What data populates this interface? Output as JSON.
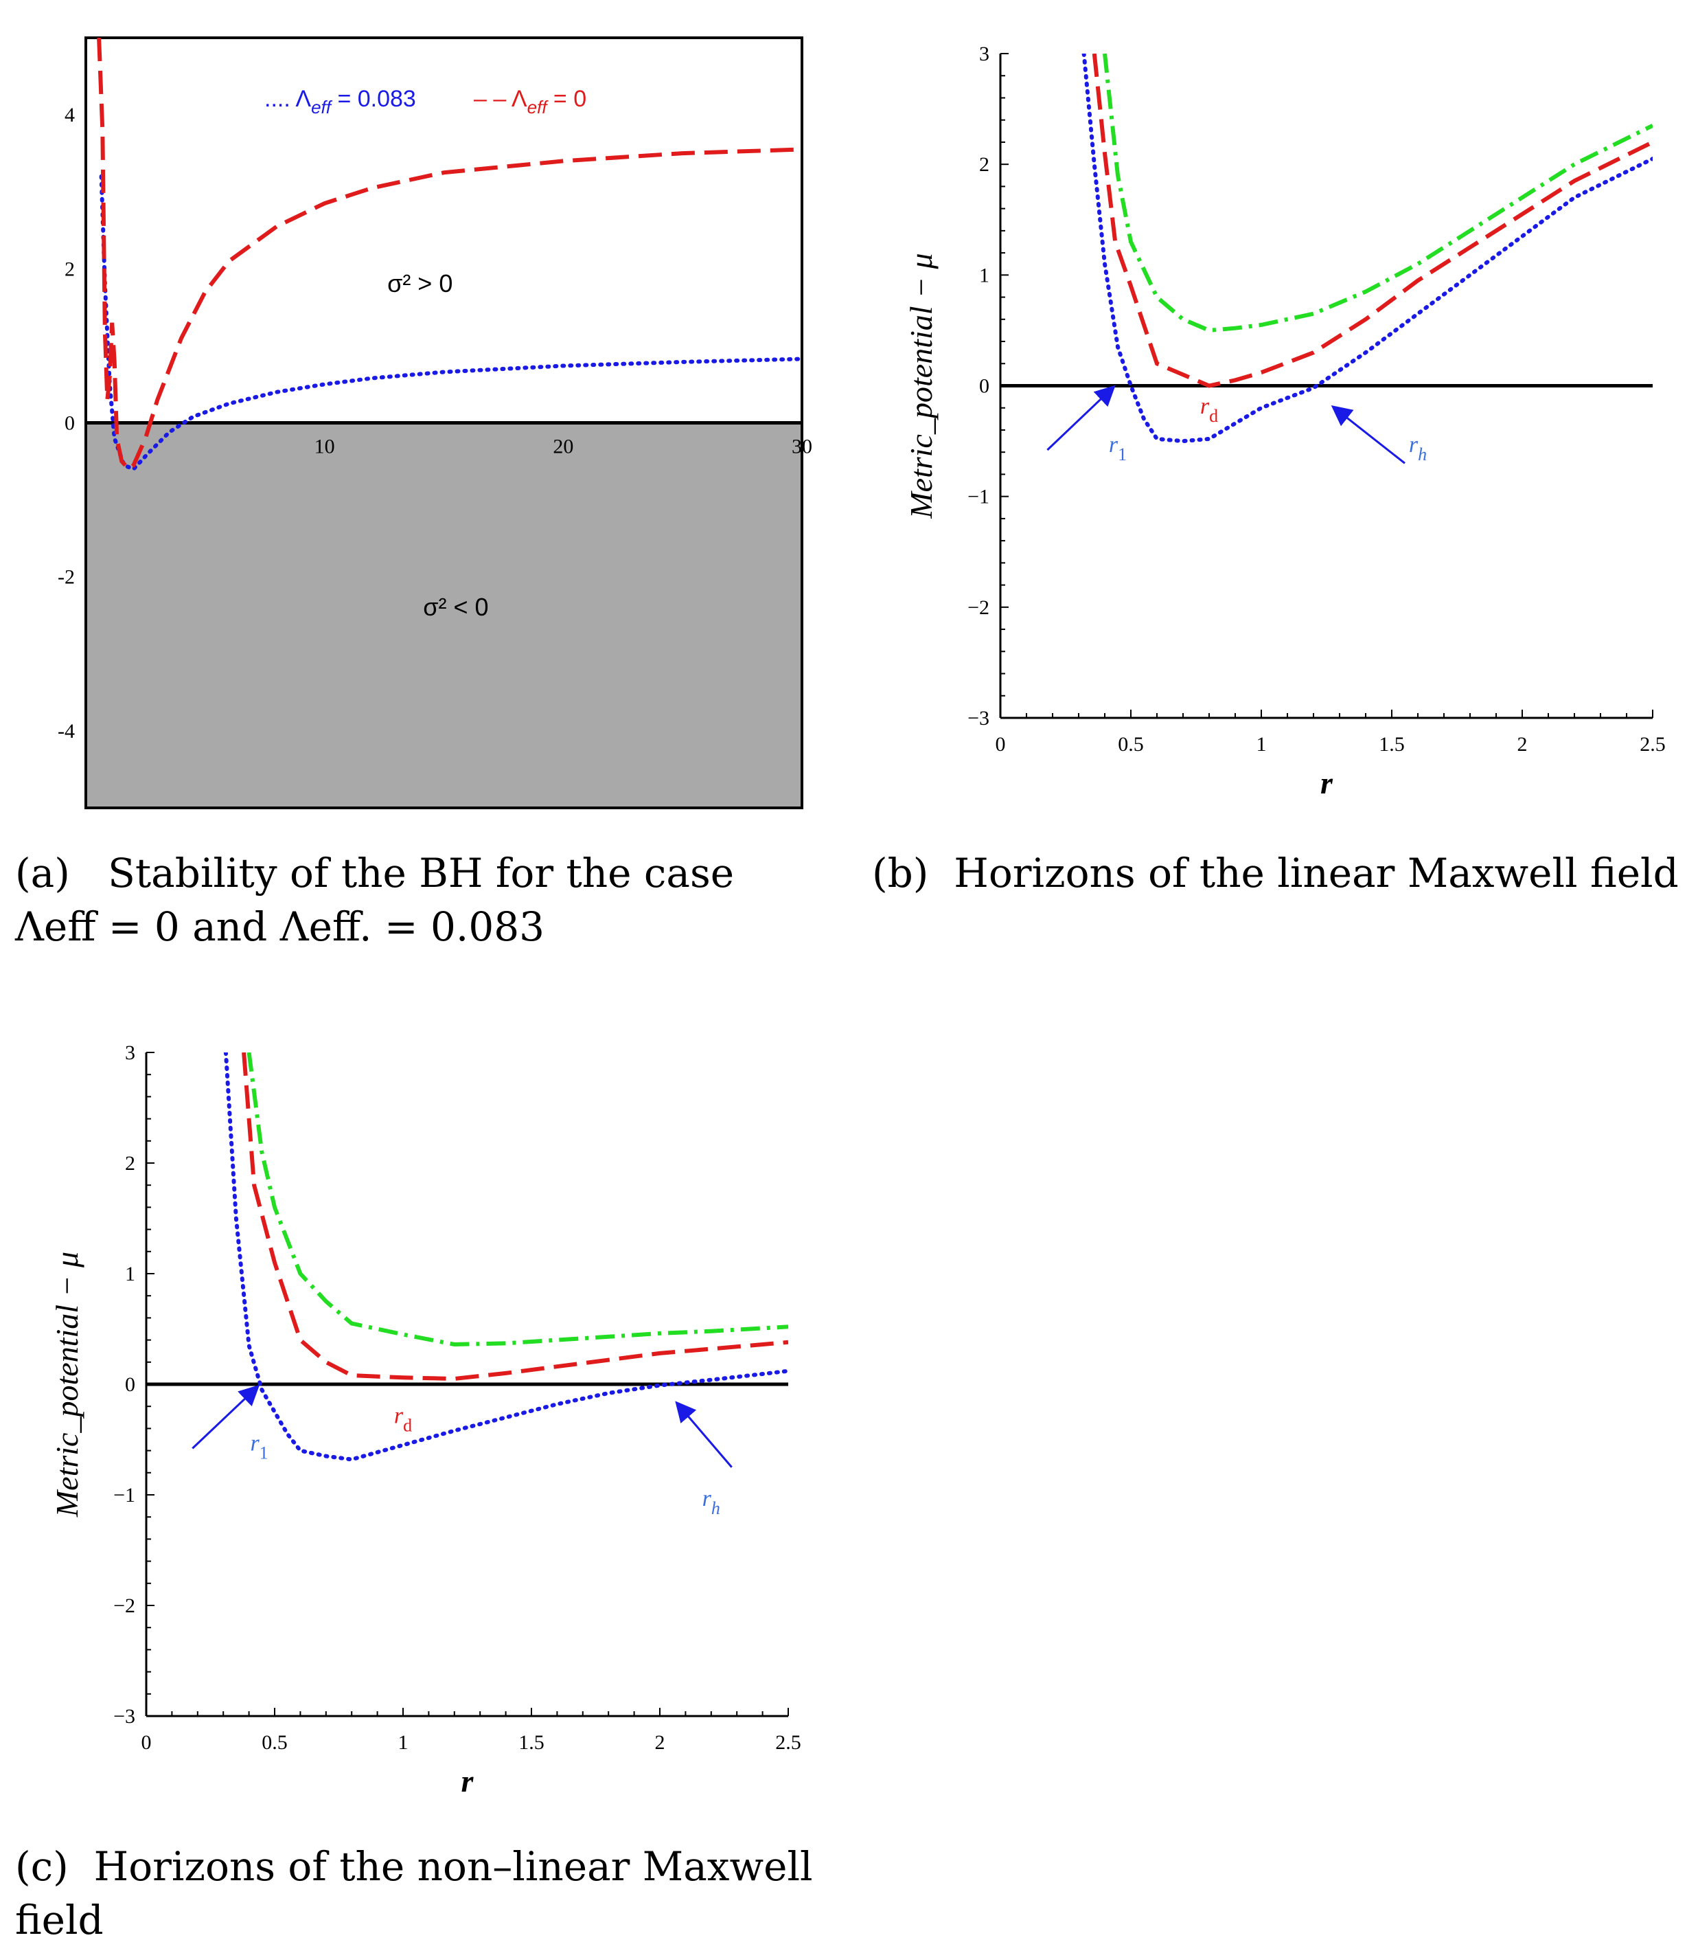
{
  "colors": {
    "blue": "#1a1ae6",
    "red": "#e01b1b",
    "green": "#22dd22",
    "label_blue": "#3b6fe0",
    "shade": "#a9a9a9"
  },
  "chart_data": [
    {
      "id": "a",
      "type": "line",
      "xlim": [
        0,
        30
      ],
      "ylim": [
        -5,
        5
      ],
      "x_ticks": [
        10,
        20,
        30
      ],
      "y_ticks": [
        -4,
        -2,
        0,
        2,
        4
      ],
      "x_tick_labels": [
        "10",
        "20",
        "30"
      ],
      "y_tick_labels": [
        "-4",
        "-2",
        "0",
        "2",
        "4"
      ],
      "shaded_region": "y < 0",
      "region_labels": {
        "upper": "σ² > 0",
        "lower": "σ² < 0"
      },
      "legend": {
        "position": "top-right",
        "entries": [
          {
            "symbol": "....",
            "label": "Λeff = 0.083",
            "color": "#1a1ae6"
          },
          {
            "symbol": "– –",
            "label": "Λeff = 0",
            "color": "#e01b1b"
          }
        ]
      },
      "series": [
        {
          "name": "Λeff = 0.083",
          "color": "#1a1ae6",
          "dash": "dot",
          "x": [
            0.65,
            0.8,
            1,
            1.2,
            1.6,
            2,
            2.6,
            3.5,
            4.5,
            6,
            8,
            10,
            12,
            15,
            20,
            25,
            30
          ],
          "y": [
            3.2,
            1.8,
            0.5,
            -0.2,
            -0.55,
            -0.6,
            -0.4,
            -0.12,
            0.08,
            0.25,
            0.4,
            0.5,
            0.58,
            0.66,
            0.74,
            0.79,
            0.83
          ]
        },
        {
          "name": "Λeff = 0",
          "color": "#e01b1b",
          "dash": "long-dash",
          "x": [
            0.55,
            0.7,
            0.8,
            0.9,
            1.0,
            1.1,
            1.2,
            1.3,
            1.5,
            1.8,
            2.0,
            2.5,
            3,
            4,
            5,
            6,
            8,
            10,
            12,
            15,
            20,
            25,
            30
          ],
          "y": [
            5,
            3.8,
            1.2,
            0.3,
            0.6,
            1.3,
            0.8,
            -0.2,
            -0.5,
            -0.6,
            -0.55,
            -0.2,
            0.3,
            1.1,
            1.7,
            2.1,
            2.55,
            2.85,
            3.05,
            3.25,
            3.4,
            3.5,
            3.55
          ]
        }
      ]
    },
    {
      "id": "b",
      "type": "line",
      "xlim": [
        0,
        2.5
      ],
      "ylim": [
        -3,
        3
      ],
      "x_ticks": [
        0,
        0.5,
        1,
        1.5,
        2,
        2.5
      ],
      "y_ticks": [
        -3,
        -2,
        -1,
        0,
        1,
        2,
        3
      ],
      "x_tick_labels": [
        "0",
        "0.5",
        "1",
        "1.5",
        "2",
        "2.5"
      ],
      "y_tick_labels": [
        "−3",
        "−2",
        "−1",
        "0",
        "1",
        "2",
        "3"
      ],
      "xlabel": "r",
      "ylabel": "Metric_potential  − μ",
      "annotations": [
        {
          "text": "r1",
          "x": 0.45,
          "y": -0.6,
          "color": "#3b6fe0",
          "arrow_from": [
            0.18,
            -0.58
          ],
          "arrow_to": [
            0.43,
            -0.02
          ]
        },
        {
          "text": "rd",
          "x": 0.8,
          "y": -0.25,
          "color": "#e01b1b"
        },
        {
          "text": "rh",
          "x": 1.6,
          "y": -0.6,
          "color": "#3b6fe0",
          "arrow_from": [
            1.55,
            -0.7
          ],
          "arrow_to": [
            1.28,
            -0.2
          ]
        }
      ],
      "series": [
        {
          "color": "#1a1ae6",
          "dash": "dot",
          "x": [
            0.32,
            0.36,
            0.4,
            0.45,
            0.5,
            0.55,
            0.6,
            0.7,
            0.8,
            1.0,
            1.2,
            1.4,
            1.6,
            1.8,
            2.0,
            2.2,
            2.5
          ],
          "y": [
            3.0,
            2.0,
            1.1,
            0.35,
            0.0,
            -0.3,
            -0.48,
            -0.5,
            -0.48,
            -0.2,
            -0.02,
            0.3,
            0.65,
            1.0,
            1.35,
            1.7,
            2.05
          ]
        },
        {
          "color": "#e01b1b",
          "dash": "long-dash",
          "x": [
            0.36,
            0.4,
            0.44,
            0.5,
            0.6,
            0.7,
            0.8,
            0.9,
            1.0,
            1.2,
            1.4,
            1.6,
            1.8,
            2.0,
            2.2,
            2.5
          ],
          "y": [
            3.0,
            2.1,
            1.3,
            0.9,
            0.2,
            0.1,
            0.0,
            0.05,
            0.12,
            0.3,
            0.6,
            0.95,
            1.25,
            1.55,
            1.85,
            2.2
          ]
        },
        {
          "color": "#22dd22",
          "dash": "dash-dot",
          "x": [
            0.4,
            0.45,
            0.5,
            0.6,
            0.7,
            0.8,
            0.9,
            1.0,
            1.2,
            1.4,
            1.6,
            1.8,
            2.0,
            2.2,
            2.5
          ],
          "y": [
            3.0,
            1.9,
            1.3,
            0.8,
            0.6,
            0.5,
            0.52,
            0.55,
            0.65,
            0.85,
            1.1,
            1.4,
            1.7,
            2.0,
            2.35
          ]
        }
      ]
    },
    {
      "id": "c",
      "type": "line",
      "xlim": [
        0,
        2.5
      ],
      "ylim": [
        -3,
        3
      ],
      "x_ticks": [
        0,
        0.5,
        1,
        1.5,
        2,
        2.5
      ],
      "y_ticks": [
        -3,
        -2,
        -1,
        0,
        1,
        2,
        3
      ],
      "x_tick_labels": [
        "0",
        "0.5",
        "1",
        "1.5",
        "2",
        "2.5"
      ],
      "y_tick_labels": [
        "−3",
        "−2",
        "−1",
        "0",
        "1",
        "2",
        "3"
      ],
      "xlabel": "r",
      "ylabel": "Metric_potential  − μ",
      "annotations": [
        {
          "text": "r1",
          "x": 0.44,
          "y": -0.6,
          "color": "#3b6fe0",
          "arrow_from": [
            0.18,
            -0.58
          ],
          "arrow_to": [
            0.43,
            -0.03
          ]
        },
        {
          "text": "rd",
          "x": 1.0,
          "y": -0.35,
          "color": "#e01b1b"
        },
        {
          "text": "rh",
          "x": 2.2,
          "y": -1.1,
          "color": "#3b6fe0",
          "arrow_from": [
            2.28,
            -0.75
          ],
          "arrow_to": [
            2.07,
            -0.18
          ]
        }
      ],
      "series": [
        {
          "color": "#1a1ae6",
          "dash": "dot",
          "x": [
            0.31,
            0.35,
            0.4,
            0.45,
            0.5,
            0.55,
            0.6,
            0.7,
            0.8,
            1.0,
            1.2,
            1.4,
            1.6,
            1.8,
            2.0,
            2.2,
            2.5
          ],
          "y": [
            3.0,
            1.5,
            0.35,
            -0.05,
            -0.25,
            -0.45,
            -0.6,
            -0.65,
            -0.68,
            -0.55,
            -0.42,
            -0.3,
            -0.18,
            -0.08,
            -0.01,
            0.04,
            0.12
          ]
        },
        {
          "color": "#e01b1b",
          "dash": "long-dash",
          "x": [
            0.38,
            0.42,
            0.5,
            0.6,
            0.7,
            0.8,
            1.0,
            1.2,
            1.4,
            1.6,
            1.8,
            2.0,
            2.2,
            2.5
          ],
          "y": [
            3.0,
            1.8,
            1.1,
            0.4,
            0.2,
            0.08,
            0.06,
            0.05,
            0.1,
            0.16,
            0.22,
            0.28,
            0.32,
            0.38
          ]
        },
        {
          "color": "#22dd22",
          "dash": "dash-dot",
          "x": [
            0.4,
            0.45,
            0.5,
            0.6,
            0.7,
            0.8,
            1.0,
            1.2,
            1.4,
            1.6,
            1.8,
            2.0,
            2.2,
            2.5
          ],
          "y": [
            3.0,
            2.1,
            1.6,
            1.0,
            0.75,
            0.55,
            0.45,
            0.36,
            0.37,
            0.4,
            0.43,
            0.46,
            0.48,
            0.52
          ]
        }
      ]
    }
  ],
  "captions": {
    "a_line1": "(a)   Stability of the BH for the case",
    "a_line2": "Λeff = 0 and Λeff. = 0.083",
    "b": "(b)  Horizons of the linear Maxwell field",
    "c_line1": "(c)  Horizons of the non–linear Maxwell",
    "c_line2": "field"
  }
}
